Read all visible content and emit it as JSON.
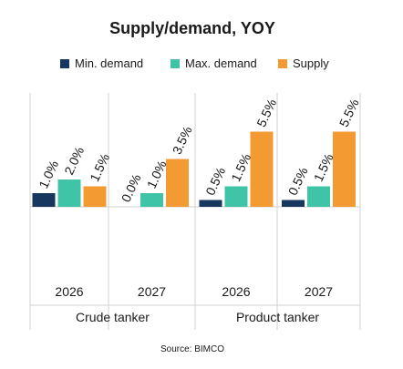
{
  "chart_data": {
    "type": "bar",
    "title": "Supply/demand, YOY",
    "source": "Source: BIMCO",
    "categories": [
      "2026",
      "2027",
      "2026",
      "2027"
    ],
    "groups": [
      {
        "label": "Crude tanker",
        "categories": [
          "2026",
          "2027"
        ]
      },
      {
        "label": "Product tanker",
        "categories": [
          "2026",
          "2027"
        ]
      }
    ],
    "series": [
      {
        "name": "Min. demand",
        "color": "#17375E",
        "values": [
          1.0,
          0.0,
          0.5,
          0.5
        ],
        "labels": [
          "1.0%",
          "0.0%",
          "0.5%",
          "0.5%"
        ]
      },
      {
        "name": "Max. demand",
        "color": "#40C4A8",
        "values": [
          2.0,
          1.0,
          1.5,
          1.5
        ],
        "labels": [
          "2.0%",
          "1.0%",
          "1.5%",
          "1.5%"
        ]
      },
      {
        "name": "Supply",
        "color": "#F39A33",
        "values": [
          1.5,
          3.5,
          5.5,
          5.5
        ],
        "labels": [
          "1.5%",
          "3.5%",
          "5.5%",
          "5.5%"
        ]
      }
    ],
    "ylim": [
      0,
      5.5
    ],
    "grid": false,
    "legend_position": "top"
  }
}
